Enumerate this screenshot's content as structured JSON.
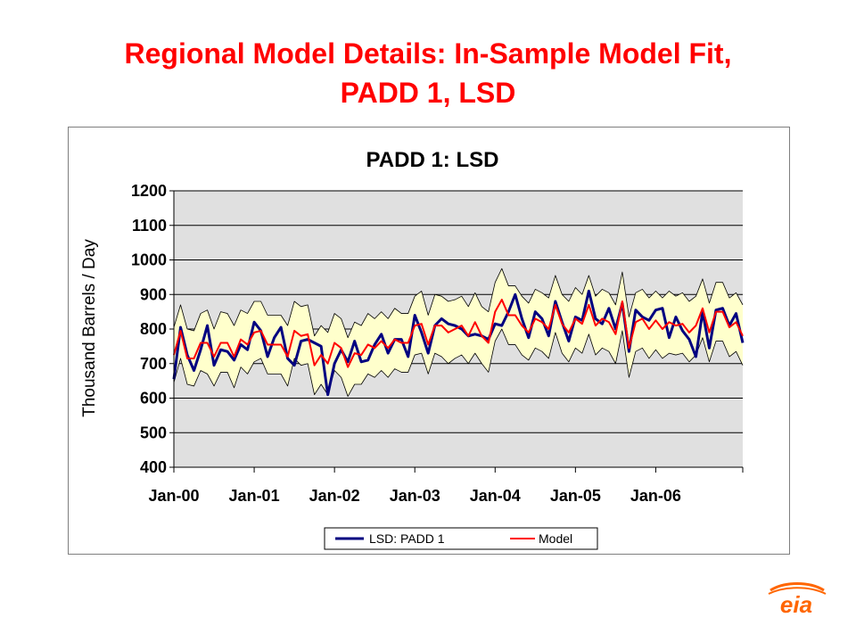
{
  "slide": {
    "title_line1": "Regional Model Details:  In-Sample Model Fit,",
    "title_line2": "PADD 1, LSD",
    "logo_text": "eia"
  },
  "colors": {
    "title": "#ff0000",
    "actual": "#000080",
    "model": "#ff0000",
    "band_fill": "#ffffcc",
    "plot_bg": "#e0e0e0"
  },
  "chart_data": {
    "type": "line",
    "title": "PADD 1:  LSD",
    "xlabel": "",
    "ylabel": "Thousand Barrels / Day",
    "ylim": [
      400,
      1200
    ],
    "yticks": [
      400,
      500,
      600,
      700,
      800,
      900,
      1000,
      1100,
      1200
    ],
    "xtick_labels": [
      "Jan-00",
      "Jan-01",
      "Jan-02",
      "Jan-03",
      "Jan-04",
      "Jan-05",
      "Jan-06"
    ],
    "x_start": "Jan-00",
    "grid": "horizontal",
    "legend_position": "bottom",
    "series": [
      {
        "name": "LSD:  PADD 1",
        "color": "#000080",
        "values": [
          655,
          805,
          725,
          680,
          740,
          810,
          695,
          740,
          735,
          710,
          755,
          740,
          820,
          795,
          720,
          775,
          805,
          715,
          695,
          765,
          770,
          760,
          750,
          610,
          700,
          740,
          705,
          765,
          705,
          710,
          755,
          785,
          730,
          770,
          770,
          720,
          840,
          790,
          730,
          810,
          830,
          815,
          810,
          800,
          780,
          785,
          780,
          770,
          815,
          810,
          850,
          900,
          830,
          775,
          850,
          830,
          780,
          880,
          820,
          765,
          835,
          825,
          910,
          830,
          815,
          860,
          800,
          875,
          735,
          855,
          835,
          825,
          855,
          860,
          775,
          835,
          795,
          770,
          720,
          850,
          745,
          855,
          860,
          810,
          845,
          760
        ]
      },
      {
        "name": "Model",
        "color": "#ff0000",
        "values": [
          725,
          795,
          715,
          715,
          760,
          760,
          720,
          760,
          760,
          720,
          770,
          755,
          790,
          795,
          755,
          755,
          755,
          720,
          795,
          780,
          785,
          695,
          725,
          700,
          760,
          745,
          690,
          730,
          725,
          755,
          745,
          765,
          745,
          770,
          760,
          760,
          810,
          815,
          755,
          810,
          810,
          790,
          800,
          810,
          780,
          820,
          780,
          760,
          850,
          885,
          840,
          840,
          810,
          790,
          830,
          820,
          800,
          870,
          815,
          790,
          830,
          815,
          870,
          810,
          830,
          820,
          785,
          880,
          745,
          820,
          830,
          800,
          825,
          800,
          820,
          810,
          815,
          790,
          810,
          860,
          790,
          850,
          850,
          805,
          820,
          780
        ]
      },
      {
        "name": "Upper band",
        "values": [
          805,
          870,
          800,
          795,
          845,
          855,
          800,
          850,
          845,
          810,
          855,
          845,
          880,
          880,
          840,
          840,
          840,
          810,
          880,
          865,
          870,
          780,
          810,
          790,
          845,
          830,
          775,
          820,
          810,
          845,
          830,
          850,
          830,
          860,
          845,
          845,
          895,
          910,
          840,
          900,
          895,
          880,
          885,
          895,
          865,
          905,
          865,
          850,
          935,
          975,
          925,
          925,
          895,
          875,
          915,
          905,
          890,
          955,
          900,
          880,
          920,
          900,
          955,
          895,
          915,
          905,
          870,
          965,
          835,
          905,
          915,
          890,
          910,
          890,
          910,
          895,
          905,
          880,
          895,
          945,
          875,
          935,
          935,
          890,
          905,
          870
        ]
      },
      {
        "name": "Lower band",
        "values": [
          645,
          715,
          640,
          635,
          680,
          670,
          635,
          675,
          675,
          630,
          690,
          670,
          705,
          715,
          670,
          670,
          670,
          635,
          715,
          695,
          700,
          610,
          640,
          610,
          680,
          660,
          605,
          640,
          640,
          670,
          660,
          680,
          660,
          685,
          675,
          675,
          725,
          730,
          670,
          730,
          720,
          700,
          715,
          725,
          700,
          730,
          700,
          675,
          765,
          800,
          755,
          755,
          725,
          710,
          745,
          735,
          715,
          790,
          730,
          705,
          745,
          730,
          785,
          725,
          745,
          735,
          700,
          795,
          660,
          735,
          745,
          715,
          740,
          715,
          730,
          725,
          730,
          705,
          725,
          775,
          705,
          765,
          765,
          720,
          735,
          695
        ]
      }
    ]
  }
}
